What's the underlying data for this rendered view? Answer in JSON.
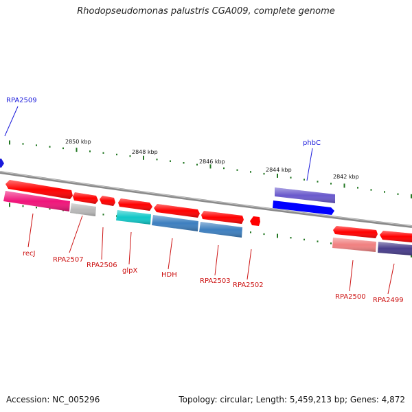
{
  "title": "Rhodopseudomonas palustris CGA009, complete genome",
  "footer": {
    "accession": "Accession: NC_005296",
    "stats": "Topology: circular; Length: 5,459,213 bp; Genes: 4,872"
  },
  "ruler": [
    "2850 kbp",
    "2848 kbp",
    "2846 kbp",
    "2844 kbp",
    "2842 kbp"
  ],
  "genes": [
    {
      "label": "RPA2509",
      "color": "#1a1adb"
    },
    {
      "label": "phbC",
      "color": "#1a1adb"
    },
    {
      "label": "recJ",
      "color": "#cc1111"
    },
    {
      "label": "RPA2507",
      "color": "#cc1111"
    },
    {
      "label": "RPA2506",
      "color": "#cc1111"
    },
    {
      "label": "glpX",
      "color": "#cc1111"
    },
    {
      "label": "HDH",
      "color": "#cc1111"
    },
    {
      "label": "RPA2503",
      "color": "#cc1111"
    },
    {
      "label": "RPA2502",
      "color": "#cc1111"
    },
    {
      "label": "RPA2500",
      "color": "#cc1111"
    },
    {
      "label": "RPA2499",
      "color": "#cc1111"
    }
  ],
  "colors": {
    "red": "#ff0000",
    "pink": "#f0147a",
    "gray": "#b8b8b8",
    "cyan": "#10c8c8",
    "steel": "#3d7fbf",
    "purple": "#6a5acd",
    "blue": "#0000ff",
    "salmon": "#f08080",
    "darkslate": "#483d8b",
    "backbone": "#808080",
    "tick": "#227722"
  }
}
